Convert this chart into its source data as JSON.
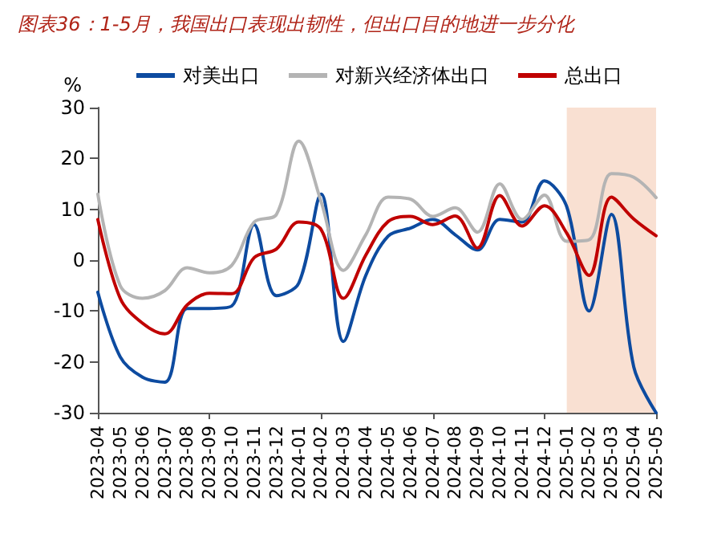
{
  "chart_data": {
    "type": "line",
    "title": "图表36：1-5月，我国出口表现出韧性，但出口目的地进一步分化",
    "ylabel": "%",
    "categories": [
      "2023-04",
      "2023-05",
      "2023-06",
      "2023-07",
      "2023-08",
      "2023-09",
      "2023-10",
      "2023-11",
      "2023-12",
      "2024-01",
      "2024-02",
      "2024-03",
      "2024-04",
      "2024-05",
      "2024-06",
      "2024-07",
      "2024-08",
      "2024-09",
      "2024-10",
      "2024-11",
      "2024-12",
      "2025-01",
      "2025-02",
      "2025-03",
      "2025-04",
      "2025-05"
    ],
    "series": [
      {
        "name": "对美出口",
        "color": "#0d4ba0",
        "values": [
          -6.3,
          -19,
          -23,
          -24,
          -9.5,
          -9.5,
          -9,
          7,
          -7,
          -4.5,
          13,
          -16,
          -3,
          4.7,
          6.3,
          8,
          5,
          2,
          8,
          7.5,
          15.6,
          10.5,
          -10,
          9,
          -21,
          -30
        ]
      },
      {
        "name": "对新兴经济体出口",
        "color": "#b4b4b4",
        "values": [
          13,
          -5,
          -7.5,
          -6,
          -1.5,
          -2.5,
          -1,
          7.5,
          9,
          23.4,
          11.5,
          -2,
          5,
          12.4,
          12,
          8.6,
          10.3,
          5.5,
          15,
          8,
          12.8,
          3.7,
          4,
          17,
          16.3,
          12.3
        ]
      },
      {
        "name": "总出口",
        "color": "#c00000",
        "values": [
          8,
          -7.5,
          -12.4,
          -14.5,
          -8.8,
          -6.5,
          -6.6,
          0.5,
          2.2,
          7.5,
          6,
          -7.5,
          1,
          7.6,
          8.6,
          7,
          8.7,
          2.4,
          12.7,
          6.7,
          10.7,
          5.3,
          -3,
          12.4,
          8.1,
          4.8
        ]
      }
    ],
    "ylim": [
      -30,
      30
    ],
    "yticks": [
      -30,
      -20,
      -10,
      0,
      10,
      20,
      30
    ],
    "bands": [
      {
        "axis": "x",
        "from": "2025-01",
        "to": "2025-05",
        "color": "#f9e0d2"
      }
    ],
    "grid": false,
    "legend": "top",
    "marker": "none",
    "line_style": "solid"
  }
}
